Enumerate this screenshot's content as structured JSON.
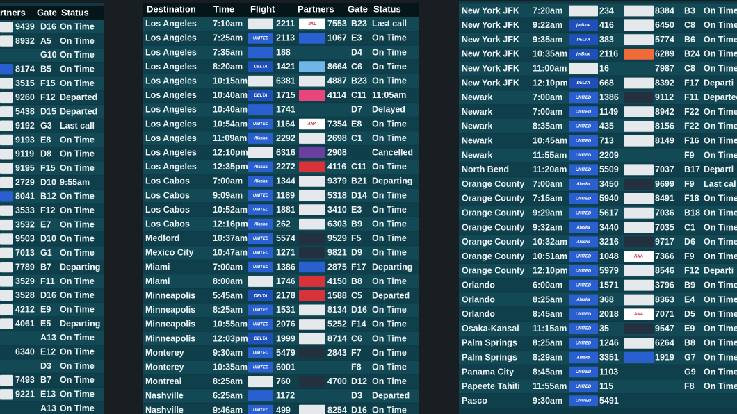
{
  "boards": [
    {
      "headers": [
        "rtners",
        "Gate",
        "Status"
      ],
      "rows": [
        [
          "#e6e9ec",
          "9439",
          "D16",
          "On Time"
        ],
        [
          "#e6e9ec",
          "8932",
          "A5",
          "On Time"
        ],
        [
          null,
          null,
          "G10",
          "On Time"
        ],
        [
          "#2a5fd0",
          "8174",
          "B5",
          "On Time"
        ],
        [
          "#e6e9ec",
          "3515",
          "F15",
          "On Time"
        ],
        [
          "#e6e9ec",
          "9260",
          "F12",
          "Departed"
        ],
        [
          "#e6e9ec",
          "5438",
          "D15",
          "Departed"
        ],
        [
          "#e6e9ec",
          "9192",
          "G3",
          "Last call"
        ],
        [
          "#e6e9ec",
          "9193",
          "E8",
          "On Time"
        ],
        [
          "#e6e9ec",
          "9119",
          "D8",
          "On Time"
        ],
        [
          "#e6e9ec",
          "9195",
          "F15",
          "On Time"
        ],
        [
          "#e6e9ec",
          "2729",
          "D10",
          "9:55am"
        ],
        [
          "#2a5fd0",
          "8041",
          "B12",
          "On Time"
        ],
        [
          "#e6e9ec",
          "3533",
          "F12",
          "On Time"
        ],
        [
          "#e6e9ec",
          "3532",
          "E7",
          "On Time"
        ],
        [
          "#e6e9ec",
          "9503",
          "D10",
          "On Time"
        ],
        [
          "#e6e9ec",
          "7013",
          "G1",
          "On Time"
        ],
        [
          "#e6e9ec",
          "7789",
          "B7",
          "Departing"
        ],
        [
          "#e6e9ec",
          "3529",
          "F11",
          "On Time"
        ],
        [
          "#e6e9ec",
          "3528",
          "D16",
          "On Time"
        ],
        [
          "#e6e9ec",
          "4212",
          "E9",
          "On Time"
        ],
        [
          "#e6e9ec",
          "4061",
          "E5",
          "Departing"
        ],
        [
          null,
          null,
          "A13",
          "On Time"
        ],
        [
          null,
          "6340",
          "E12",
          "On Time"
        ],
        [
          null,
          null,
          "D3",
          "On Time"
        ],
        [
          "#e6e9ec",
          "7493",
          "B7",
          "On Time"
        ],
        [
          "#e6e9ec",
          "9221",
          "E13",
          "On Time"
        ],
        [
          null,
          null,
          "A13",
          "On Time"
        ]
      ]
    },
    {
      "headers": [
        "Destination",
        "Time",
        "Flight",
        "Partners",
        "Gate",
        "Status"
      ],
      "rows": [
        [
          "Los Angeles",
          "7:10am",
          null,
          "#e6e9ec",
          "2211",
          "JAL",
          "#ffffff",
          "7553",
          "B23",
          "Last call"
        ],
        [
          "Los Angeles",
          "7:25am",
          "UNITED",
          "#2a5fd0",
          "2113",
          null,
          "#2a5fd0",
          "1067",
          "E3",
          "On Time"
        ],
        [
          "Los Angeles",
          "7:35am",
          null,
          "#2a5fd0",
          "188",
          null,
          null,
          null,
          "D4",
          "On Time"
        ],
        [
          "Los Angeles",
          "8:20am",
          "DELTA",
          "#1f4fb8",
          "1421",
          null,
          "#6fb6e6",
          "8664",
          "C6",
          "On Time"
        ],
        [
          "Los Angeles",
          "10:15am",
          null,
          "#e6e9ec",
          "6381",
          null,
          "#e6e9ec",
          "4887",
          "B23",
          "On Time"
        ],
        [
          "Los Angeles",
          "10:40am",
          "DELTA",
          "#1f4fb8",
          "1715",
          null,
          "#e8467a",
          "4114",
          "C11",
          "11:05am"
        ],
        [
          "Los Angeles",
          "10:40am",
          null,
          "#2a5fd0",
          "1741",
          null,
          null,
          null,
          "D7",
          "Delayed"
        ],
        [
          "Los Angeles",
          "10:54am",
          "UNITED",
          "#2a5fd0",
          "1164",
          "ANA",
          "#ffffff",
          "7354",
          "E8",
          "On Time"
        ],
        [
          "Los Angeles",
          "11:09am",
          "Alaska",
          "#2a5fd0",
          "2292",
          null,
          "#e6e9ec",
          "2698",
          "C1",
          "On Time"
        ],
        [
          "Los Angeles",
          "12:10pm",
          null,
          "#e6e9ec",
          "6316",
          null,
          "#6b3fa0",
          "2908",
          null,
          "Cancelled"
        ],
        [
          "Los Angeles",
          "12:35pm",
          "Alaska",
          "#2a5fd0",
          "2272",
          null,
          "#d8323a",
          "4116",
          "C11",
          "On Time"
        ],
        [
          "Los Cabos",
          "7:00am",
          "Alaska",
          "#2a5fd0",
          "1344",
          null,
          "#e6e9ec",
          "9379",
          "B21",
          "Departing"
        ],
        [
          "Los Cabos",
          "9:09am",
          "UNITED",
          "#2a5fd0",
          "1189",
          null,
          "#e6e9ec",
          "5318",
          "D14",
          "On Time"
        ],
        [
          "Los Cabos",
          "10:52am",
          "UNITED",
          "#2a5fd0",
          "1881",
          null,
          "#e6e9ec",
          "3410",
          "E3",
          "On Time"
        ],
        [
          "Los Cabos",
          "12:16pm",
          "Alaska",
          "#2a5fd0",
          "262",
          null,
          "#e6e9ec",
          "6303",
          "B9",
          "On Time"
        ],
        [
          "Medford",
          "10:37am",
          "UNITED",
          "#2a5fd0",
          "5574",
          null,
          "#223040",
          "9529",
          "F5",
          "On Time"
        ],
        [
          "Mexico City",
          "10:47am",
          "UNITED",
          "#2a5fd0",
          "1271",
          null,
          "#223040",
          "9821",
          "D9",
          "On Time"
        ],
        [
          "Miami",
          "7:00am",
          "UNITED",
          "#2a5fd0",
          "1386",
          null,
          "#2a5fd0",
          "2875",
          "F17",
          "Departing"
        ],
        [
          "Miami",
          "8:00am",
          null,
          "#e6e9ec",
          "1746",
          null,
          "#d8323a",
          "4150",
          "B8",
          "On Time"
        ],
        [
          "Minneapolis",
          "5:45am",
          "DELTA",
          "#1f4fb8",
          "2178",
          null,
          "#d8323a",
          "1588",
          "C5",
          "Departed"
        ],
        [
          "Minneapolis",
          "8:25am",
          "UNITED",
          "#2a5fd0",
          "1531",
          null,
          "#e6e9ec",
          "8134",
          "D16",
          "On Time"
        ],
        [
          "Minneapolis",
          "10:55am",
          "UNITED",
          "#2a5fd0",
          "2076",
          null,
          "#e6e9ec",
          "5252",
          "F14",
          "On Time"
        ],
        [
          "Minneapolis",
          "12:03pm",
          "DELTA",
          "#1f4fb8",
          "1999",
          null,
          "#e6e9ec",
          "8714",
          "C6",
          "On Time"
        ],
        [
          "Monterey",
          "9:30am",
          "UNITED",
          "#2a5fd0",
          "5479",
          null,
          "#223040",
          "2843",
          "F7",
          "On Time"
        ],
        [
          "Monterey",
          "10:35am",
          "UNITED",
          "#2a5fd0",
          "6001",
          null,
          null,
          null,
          "F8",
          "On Time"
        ],
        [
          "Montreal",
          "8:25am",
          null,
          "#e6e9ec",
          "760",
          null,
          "#223040",
          "4700",
          "D12",
          "On Time"
        ],
        [
          "Nashville",
          "6:25am",
          null,
          "#2a5fd0",
          "1172",
          null,
          null,
          null,
          "D3",
          "Departed"
        ],
        [
          "Nashville",
          "9:46am",
          "UNITED",
          "#2a5fd0",
          "499",
          null,
          "#e6e9ec",
          "8254",
          "D16",
          "On Time"
        ]
      ]
    },
    {
      "rows": [
        [
          "New York JFK",
          "7:20am",
          null,
          "#e6e9ec",
          "234",
          null,
          "#e6e9ec",
          "8384",
          "B3",
          "On Time"
        ],
        [
          "New York JFK",
          "9:22am",
          "jetBlue",
          "#1f4fb8",
          "416",
          null,
          "#e6e9ec",
          "6450",
          "C8",
          "On Time"
        ],
        [
          "New York JFK",
          "9:35am",
          "DELTA",
          "#1f4fb8",
          "383",
          null,
          "#e6e9ec",
          "5774",
          "B6",
          "On Time"
        ],
        [
          "New York JFK",
          "10:35am",
          "jetBlue",
          "#1f4fb8",
          "2116",
          null,
          "#f06a3a",
          "6289",
          "B24",
          "On Time"
        ],
        [
          "New York JFK",
          "11:00am",
          null,
          "#e6e9ec",
          "16",
          null,
          null,
          "7987",
          "C8",
          "On Time"
        ],
        [
          "New York JFK",
          "12:10pm",
          "DELTA",
          "#1f4fb8",
          "668",
          null,
          "#e6e9ec",
          "8392",
          "F17",
          "Departi"
        ],
        [
          "Newark",
          "7:00am",
          "UNITED",
          "#2a5fd0",
          "1386",
          null,
          "#223040",
          "9112",
          "F11",
          "Departed"
        ],
        [
          "Newark",
          "7:00am",
          "UNITED",
          "#2a5fd0",
          "1149",
          null,
          "#e6e9ec",
          "8942",
          "F22",
          "On Time"
        ],
        [
          "Newark",
          "8:35am",
          "UNITED",
          "#2a5fd0",
          "435",
          null,
          "#e6e9ec",
          "8156",
          "F22",
          "On Time"
        ],
        [
          "Newark",
          "10:45am",
          "UNITED",
          "#2a5fd0",
          "713",
          null,
          "#e6e9ec",
          "8149",
          "F16",
          "On Time"
        ],
        [
          "Newark",
          "11:55am",
          "UNITED",
          "#2a5fd0",
          "2209",
          null,
          null,
          null,
          "F9",
          "On Time"
        ],
        [
          "North Bend",
          "11:20am",
          "UNITED",
          "#2a5fd0",
          "5509",
          null,
          "#e6e9ec",
          "7037",
          "B17",
          "Departi"
        ],
        [
          "Orange County",
          "7:00am",
          "Alaska",
          "#2a5fd0",
          "3450",
          null,
          "#223040",
          "9699",
          "F9",
          "Last cal"
        ],
        [
          "Orange County",
          "7:15am",
          "UNITED",
          "#2a5fd0",
          "5940",
          null,
          "#e6e9ec",
          "8491",
          "F18",
          "On Time"
        ],
        [
          "Orange County",
          "9:29am",
          "UNITED",
          "#2a5fd0",
          "5617",
          null,
          "#e6e9ec",
          "7036",
          "B18",
          "On Time"
        ],
        [
          "Orange County",
          "9:32am",
          "Alaska",
          "#2a5fd0",
          "3440",
          null,
          "#e6e9ec",
          "7035",
          "C1",
          "On Time"
        ],
        [
          "Orange County",
          "10:32am",
          "Alaska",
          "#2a5fd0",
          "3216",
          null,
          "#223040",
          "9717",
          "D6",
          "On Time"
        ],
        [
          "Orange County",
          "10:51am",
          "UNITED",
          "#2a5fd0",
          "1048",
          "ANA",
          "#ffffff",
          "7366",
          "F9",
          "On Time"
        ],
        [
          "Orange County",
          "12:10pm",
          "UNITED",
          "#2a5fd0",
          "5979",
          null,
          "#e6e9ec",
          "8546",
          "F12",
          "Departi"
        ],
        [
          "Orlando",
          "6:00am",
          "UNITED",
          "#2a5fd0",
          "1571",
          null,
          "#e6e9ec",
          "3796",
          "B9",
          "On Time"
        ],
        [
          "Orlando",
          "8:25am",
          "Alaska",
          "#2a5fd0",
          "368",
          null,
          "#e6e9ec",
          "8363",
          "E4",
          "On Time"
        ],
        [
          "Orlando",
          "8:45am",
          "UNITED",
          "#2a5fd0",
          "2018",
          "ANA",
          "#ffffff",
          "7071",
          "D5",
          "On Time"
        ],
        [
          "Osaka-Kansai",
          "11:15am",
          "UNITED",
          "#2a5fd0",
          "35",
          null,
          "#223040",
          "9547",
          "E9",
          "On Time"
        ],
        [
          "Palm Springs",
          "8:25am",
          "UNITED",
          "#2a5fd0",
          "1246",
          null,
          "#e6e9ec",
          "6264",
          "B8",
          "On Time"
        ],
        [
          "Palm Springs",
          "8:29am",
          "Alaska",
          "#2a5fd0",
          "3351",
          null,
          "#2a5fd0",
          "1919",
          "G7",
          "On Time"
        ],
        [
          "Panama City",
          "8:45am",
          "UNITED",
          "#2a5fd0",
          "1103",
          null,
          null,
          null,
          "G9",
          "On Time"
        ],
        [
          "Papeete Tahiti",
          "11:55am",
          "UNITED",
          "#2a5fd0",
          "115",
          null,
          null,
          null,
          "F8",
          "On Time"
        ],
        [
          "Pasco",
          "9:30am",
          "UNITED",
          "#2a5fd0",
          "5491",
          null,
          null,
          null,
          null,
          null
        ]
      ]
    }
  ]
}
